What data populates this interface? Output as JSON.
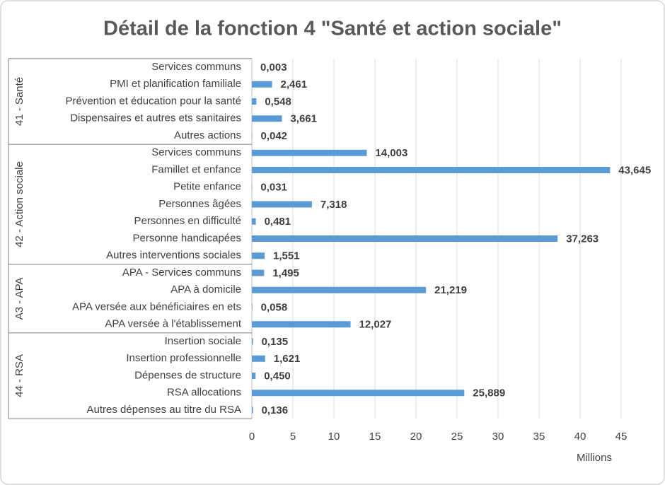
{
  "chart_data": {
    "type": "bar",
    "orientation": "horizontal",
    "title": "Détail de la fonction 4 \"Santé et action sociale\"",
    "x_label": "Millions",
    "color": "#5b9bd5",
    "xlim": [
      0,
      45
    ],
    "xticks": [
      0,
      5,
      10,
      15,
      20,
      25,
      30,
      35,
      40,
      45
    ],
    "grid": true,
    "groups": [
      {
        "name": "41 - Santé",
        "categories": [
          "Services communs",
          "PMI et planification familiale",
          "Prévention et éducation pour la santé",
          "Dispensaires et autres ets sanitaires",
          "Autres actions"
        ],
        "values": [
          0.003,
          2.461,
          0.548,
          3.661,
          0.042
        ],
        "value_labels": [
          "0,003",
          "2,461",
          "0,548",
          "3,661",
          "0,042"
        ]
      },
      {
        "name": "42 - Action sociale",
        "categories": [
          "Services communs",
          "Famillet et enfance",
          "Petite enfance",
          "Personnes âgées",
          "Personnes en difficulté",
          "Personne handicapées",
          "Autres interventions sociales"
        ],
        "values": [
          14.003,
          43.645,
          0.031,
          7.318,
          0.481,
          37.263,
          1.551
        ],
        "value_labels": [
          "14,003",
          "43,645",
          "0,031",
          "7,318",
          "0,481",
          "37,263",
          "1,551"
        ]
      },
      {
        "name": "A3 - APA",
        "categories": [
          "APA - Services communs",
          "APA à domicile",
          "APA versée aux bénéficiaires en ets",
          "APA versée à l'établissement"
        ],
        "values": [
          1.495,
          21.219,
          0.058,
          12.027
        ],
        "value_labels": [
          "1,495",
          "21,219",
          "0,058",
          "12,027"
        ]
      },
      {
        "name": "44 - RSA",
        "categories": [
          "Insertion sociale",
          "Insertion professionnelle",
          "Dépenses de structure",
          "RSA allocations",
          "Autres dépenses au titre du RSA"
        ],
        "values": [
          0.135,
          1.621,
          0.45,
          25.889,
          0.136
        ],
        "value_labels": [
          "0,135",
          "1,621",
          "0,450",
          "25,889",
          "0,136"
        ]
      }
    ]
  }
}
